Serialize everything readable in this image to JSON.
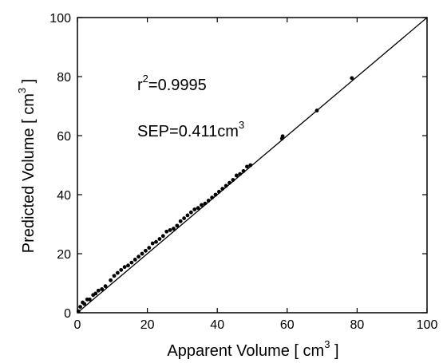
{
  "chart_data": {
    "type": "scatter",
    "xlabel": "Apparent Volume [ cm",
    "xlabel_sup": "3",
    "xlabel_end": " ]",
    "ylabel": "Predicted Volume [ cm",
    "ylabel_sup": "3",
    "ylabel_end": " ]",
    "xlim": [
      0,
      100
    ],
    "ylim": [
      0,
      100
    ],
    "xticks": [
      0,
      20,
      40,
      60,
      80,
      100
    ],
    "yticks": [
      0,
      20,
      40,
      60,
      80,
      100
    ],
    "grid": false,
    "annotations": {
      "r2_base": "r",
      "r2_sup": "2",
      "r2_value": "=0.9995",
      "sep_text": "SEP=0.411cm",
      "sep_sup": "3"
    },
    "reference_line": {
      "from": [
        0,
        0
      ],
      "to": [
        100,
        100
      ]
    },
    "points": {
      "x": [
        0.3,
        0.8,
        1.5,
        2.0,
        2.8,
        3.5,
        4.5,
        5.2,
        6.0,
        7.0,
        8.0,
        9.5,
        10.5,
        11.5,
        12.5,
        13.5,
        14.5,
        15.5,
        16.5,
        17.5,
        18.5,
        19.5,
        20.5,
        21.5,
        22.5,
        23.5,
        24.5,
        25.5,
        26.5,
        27.5,
        28.5,
        29.5,
        30.5,
        31.5,
        32.5,
        33.5,
        34.5,
        35.5,
        36.5,
        37.5,
        38.5,
        39.5,
        40.5,
        41.5,
        42.5,
        43.5,
        44.5,
        45.5,
        46.5,
        47.5,
        48.5,
        49.5,
        58.5,
        58.7,
        68.5,
        78.5
      ],
      "y": [
        0.5,
        2.0,
        3.5,
        3.0,
        4.5,
        4.5,
        6.0,
        6.5,
        7.5,
        8.0,
        9.0,
        11.0,
        12.5,
        13.5,
        14.5,
        15.5,
        16.0,
        17.0,
        18.0,
        19.0,
        20.0,
        21.0,
        22.0,
        23.5,
        24.0,
        25.0,
        26.0,
        27.5,
        28.0,
        28.5,
        29.5,
        31.0,
        32.0,
        33.0,
        34.0,
        35.0,
        35.5,
        36.5,
        37.0,
        38.0,
        39.0,
        40.0,
        41.0,
        42.0,
        43.0,
        44.0,
        45.0,
        46.5,
        47.0,
        48.0,
        49.5,
        50.0,
        59.0,
        59.8,
        68.5,
        79.5
      ]
    }
  }
}
